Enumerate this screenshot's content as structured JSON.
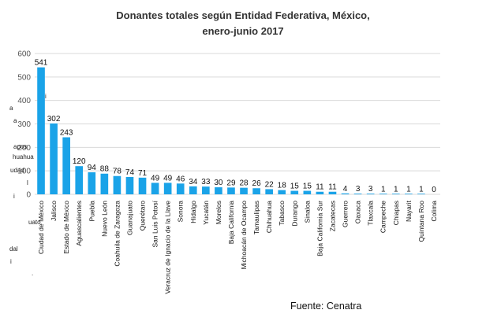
{
  "title_line1": "Donantes totales según Entidad Federativa, México,",
  "title_line2": "enero-junio 2017",
  "source": "Fuente: Cenatra",
  "colors": {
    "bar": "#1aa3e8",
    "grid": "#d9d9d9",
    "tick": "#555555",
    "label": "#111111"
  },
  "stray_text": [
    "i",
    "a",
    "a",
    "apos",
    "huahua",
    "udad",
    "l",
    "i",
    "uato",
    "dal",
    "i",
    "."
  ],
  "chart_data": {
    "type": "bar",
    "title": "Donantes totales según Entidad Federativa, México, enero-junio 2017",
    "xlabel": "",
    "ylabel": "",
    "ylim": [
      0,
      600
    ],
    "yticks": [
      0,
      100,
      200,
      300,
      400,
      500,
      600
    ],
    "grid": true,
    "categories": [
      "Ciudad de México",
      "Jalisco",
      "Estado de México",
      "Aguascalientes",
      "Puebla",
      "Nuevo León",
      "Coahuila de Zaragoza",
      "Guanajuato",
      "Querétaro",
      "San Luis Potosí",
      "Veracruz de Ignacio de la Llave",
      "Sonora",
      "Hidalgo",
      "Yucatán",
      "Morelos",
      "Baja California",
      "Michoacán de Ocampo",
      "Tamaulipas",
      "Chihuahua",
      "Tabasco",
      "Durango",
      "Sinaloa",
      "Baja California Sur",
      "Zacatecas",
      "Guerrero",
      "Oaxaca",
      "Tlaxcala",
      "Campeche",
      "Chiapas",
      "Nayarit",
      "Quintana Roo",
      "Colima"
    ],
    "values": [
      541,
      302,
      243,
      120,
      94,
      88,
      78,
      74,
      71,
      49,
      49,
      46,
      34,
      33,
      30,
      29,
      28,
      26,
      22,
      18,
      15,
      15,
      11,
      11,
      4,
      3,
      3,
      1,
      1,
      1,
      1,
      0
    ]
  }
}
